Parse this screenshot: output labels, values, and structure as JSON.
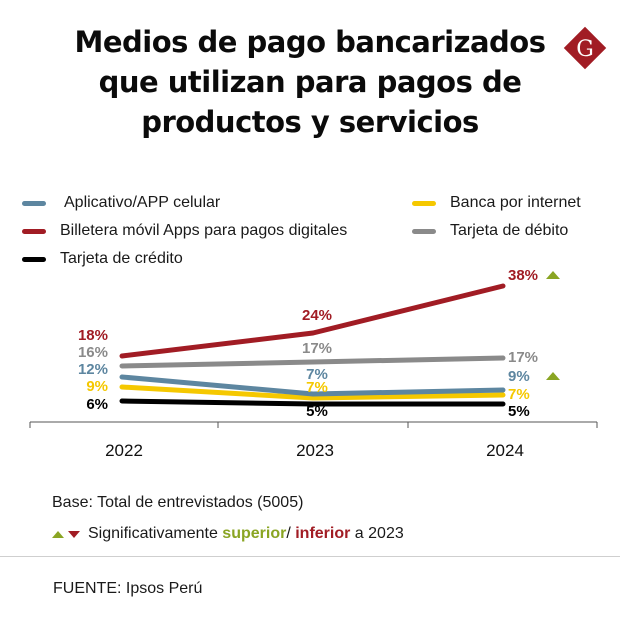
{
  "header": {
    "title_lines": [
      "Medios de pago bancarizados",
      "que utilizan para pagos de",
      "productos y servicios"
    ],
    "logo_letter": "G",
    "logo_color": "#a11c24"
  },
  "chart_data": {
    "type": "line",
    "title": "Medios de pago bancarizados que utilizan para pagos de productos y servicios",
    "x": [
      "2022",
      "2023",
      "2024"
    ],
    "xlabel": "",
    "ylabel": "",
    "unit": "%",
    "grid": false,
    "legend_position": "top",
    "series": [
      {
        "name": "Aplicativo/APP celular",
        "color": "#5d86a0",
        "values": [
          12,
          7,
          9
        ],
        "labels": [
          "12%",
          "7%",
          "9%"
        ],
        "significance": [
          null,
          null,
          "up"
        ]
      },
      {
        "name": "Banca por internet",
        "color": "#f5c800",
        "values": [
          9,
          7,
          7
        ],
        "labels": [
          "9%",
          "7%",
          "7%"
        ],
        "significance": [
          null,
          null,
          null
        ]
      },
      {
        "name": "Billetera móvil Apps para pagos digitales",
        "color": "#a11c24",
        "values": [
          18,
          24,
          38
        ],
        "labels": [
          "18%",
          "24%",
          "38%"
        ],
        "significance": [
          null,
          null,
          "up"
        ]
      },
      {
        "name": "Tarjeta de débito",
        "color": "#8a8a8a",
        "values": [
          16,
          17,
          17
        ],
        "labels": [
          "16%",
          "17%",
          "17%"
        ],
        "significance": [
          null,
          null,
          null
        ]
      },
      {
        "name": "Tarjeta de crédito",
        "color": "#000000",
        "values": [
          6,
          5,
          5
        ],
        "labels": [
          "6%",
          "5%",
          "5%"
        ],
        "significance": [
          null,
          null,
          null
        ]
      }
    ],
    "significance_colors": {
      "up": "#8aa523",
      "down": "#a11c24"
    }
  },
  "legend": {
    "items": [
      {
        "label": "Aplicativo/APP celular",
        "color": "#5d86a0"
      },
      {
        "label": "Banca por internet",
        "color": "#f5c800"
      },
      {
        "label": "Billetera móvil Apps para pagos digitales",
        "color": "#a11c24"
      },
      {
        "label": "Tarjeta de débito",
        "color": "#8a8a8a"
      },
      {
        "label": "Tarjeta de crédito",
        "color": "#000000"
      }
    ]
  },
  "footer": {
    "base": "Base: Total de entrevistados (5005)",
    "sig_prefix": "Significativamente",
    "sig_superior": "superior",
    "sig_sep": "/",
    "sig_inferior": "inferior",
    "sig_suffix": "a 2023",
    "source": "FUENTE: Ipsos Perú"
  }
}
